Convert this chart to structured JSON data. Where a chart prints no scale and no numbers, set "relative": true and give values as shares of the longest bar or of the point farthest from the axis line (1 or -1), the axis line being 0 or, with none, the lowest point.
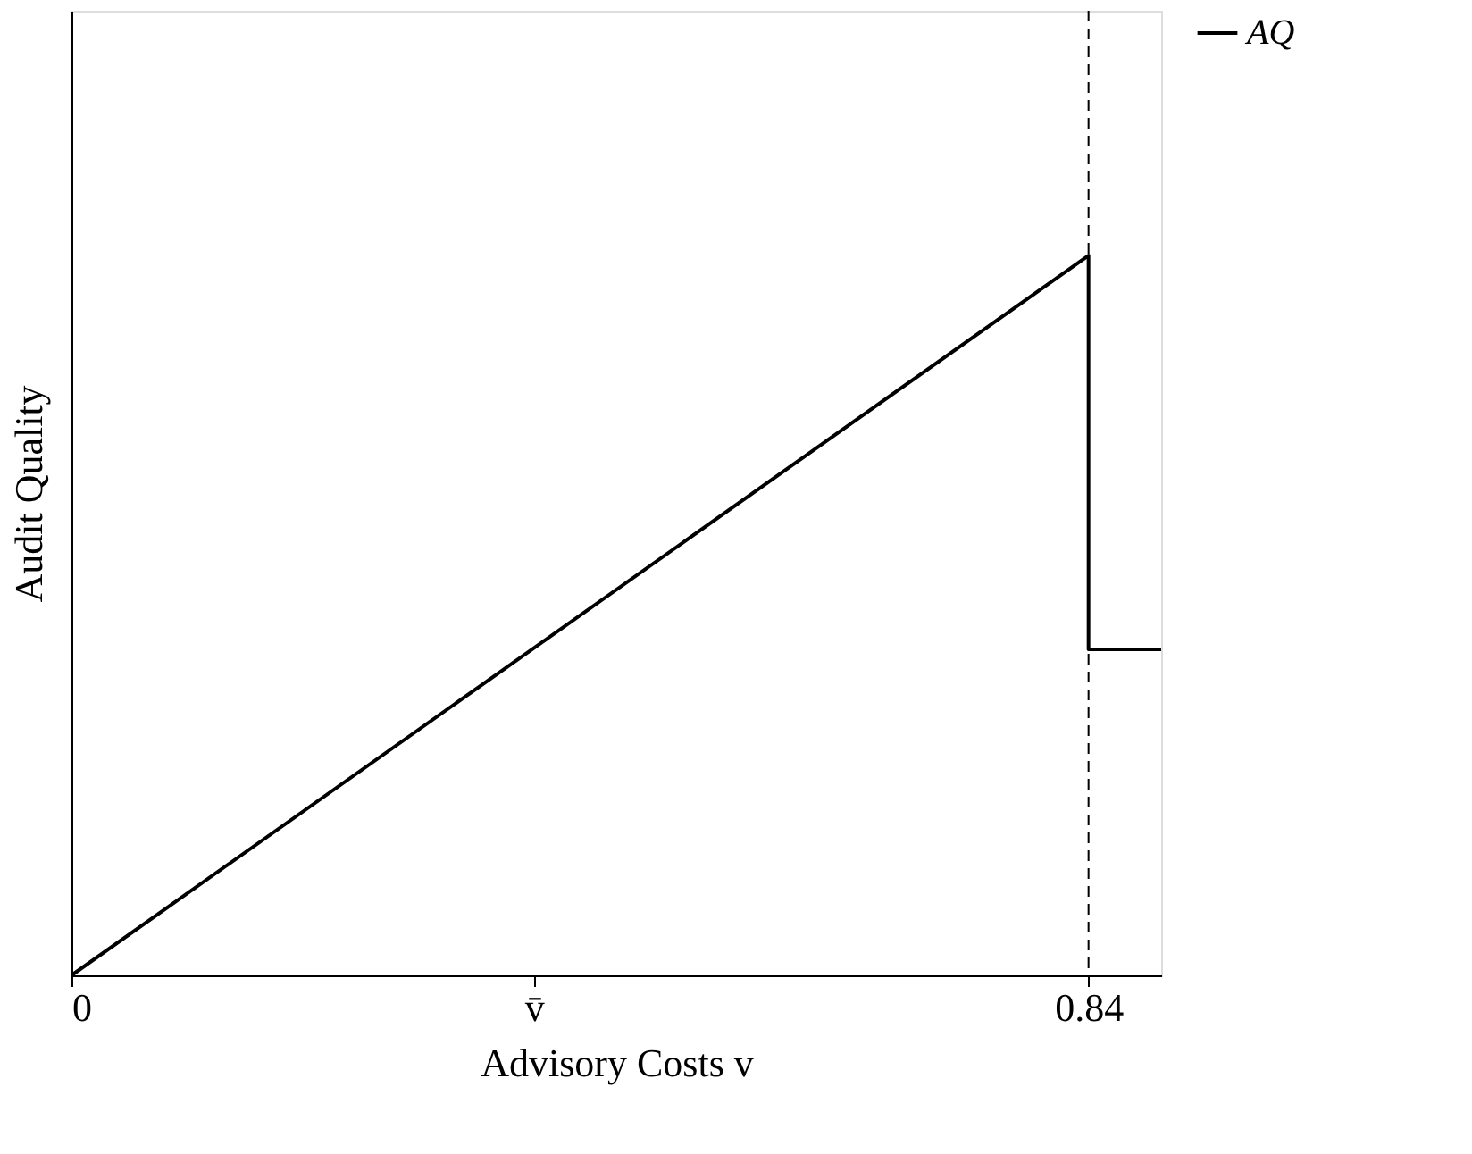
{
  "chart_data": {
    "type": "line",
    "xlabel": "Advisory Costs v",
    "ylabel": "Audit Quality",
    "x": [
      0,
      0.84,
      0.84,
      0.9
    ],
    "series": [
      {
        "name": "AQ",
        "color": "#000000",
        "values": [
          0,
          1,
          0.453,
          0.453
        ]
      }
    ],
    "relative": true,
    "xlim": [
      0,
      0.9
    ],
    "xticks": [
      0,
      {
        "value": 0.382,
        "label": "v̄"
      },
      0.84
    ],
    "ref_lines": [
      {
        "axis": "x",
        "value": 0.84,
        "line_style": "dashed",
        "color": "#000000"
      }
    ],
    "legend": "top right",
    "grid": false,
    "marker": "none",
    "line_style": "solid"
  }
}
